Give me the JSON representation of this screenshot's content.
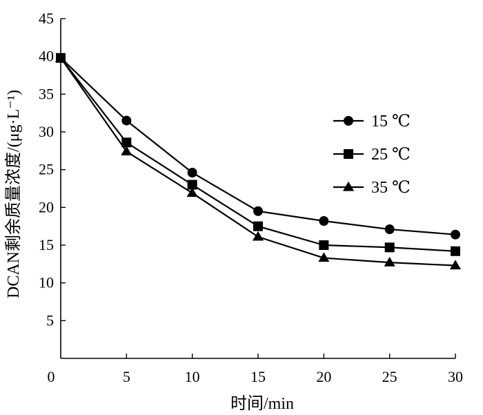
{
  "chart_data": {
    "type": "line",
    "title": "",
    "xlabel": "时间/min",
    "ylabel": "DCAN剩余质量浓度/(μg·L⁻¹)",
    "xlim": [
      0,
      30
    ],
    "ylim": [
      0,
      45
    ],
    "xticks": [
      0,
      5,
      10,
      15,
      20,
      25,
      30
    ],
    "yticks": [
      5,
      10,
      15,
      20,
      25,
      30,
      35,
      40,
      45
    ],
    "grid": false,
    "legend_position": "right",
    "x": [
      0,
      5,
      10,
      15,
      20,
      25,
      30
    ],
    "series": [
      {
        "name": "15 ℃",
        "marker": "circle",
        "color": "#000000",
        "values": [
          39.8,
          31.5,
          24.6,
          19.5,
          18.2,
          17.1,
          16.4
        ]
      },
      {
        "name": "25 ℃",
        "marker": "square",
        "color": "#000000",
        "values": [
          39.8,
          28.6,
          23.0,
          17.5,
          15.0,
          14.7,
          14.2
        ]
      },
      {
        "name": "35 ℃",
        "marker": "triangle",
        "color": "#000000",
        "values": [
          39.8,
          27.4,
          21.9,
          16.1,
          13.3,
          12.7,
          12.3
        ]
      }
    ]
  }
}
